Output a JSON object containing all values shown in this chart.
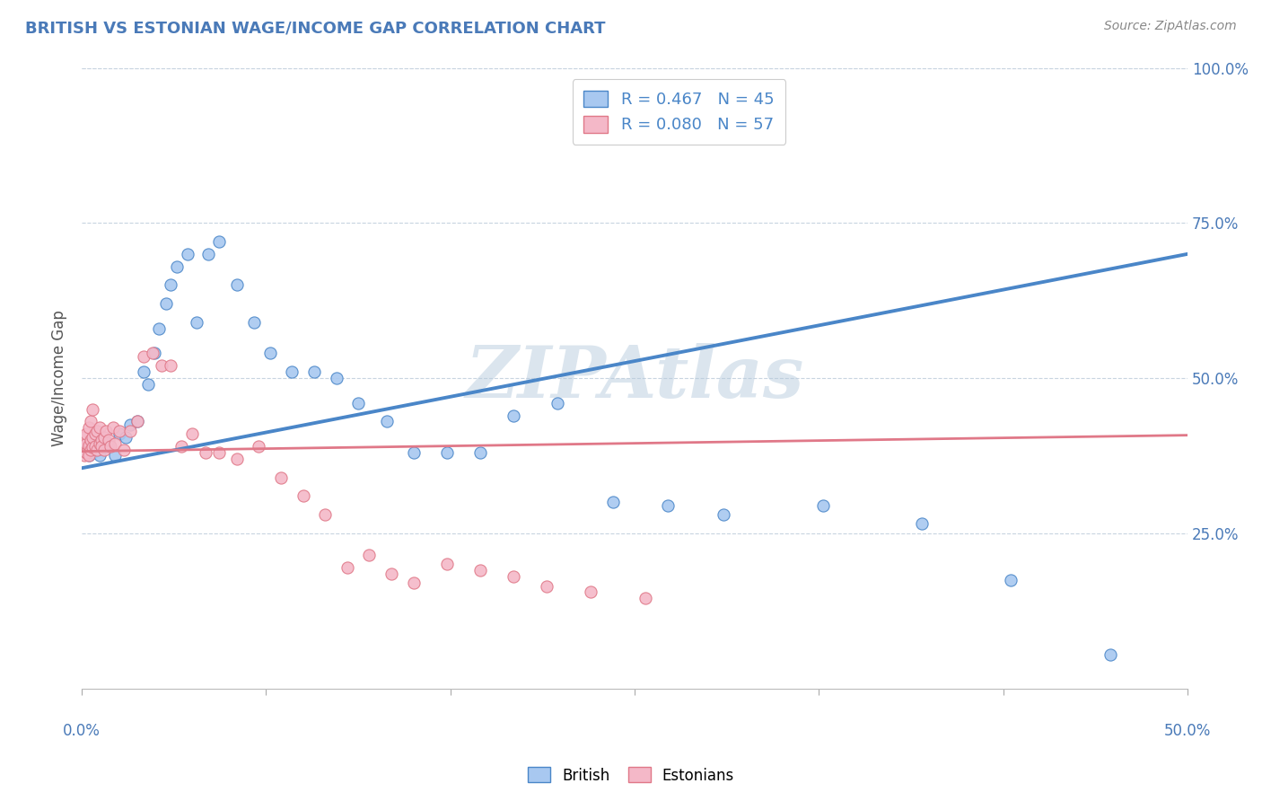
{
  "title": "BRITISH VS ESTONIAN WAGE/INCOME GAP CORRELATION CHART",
  "source": "Source: ZipAtlas.com",
  "ylabel": "Wage/Income Gap",
  "watermark": "ZIPAtlas",
  "legend_blue_r": "R = 0.467",
  "legend_blue_n": "N = 45",
  "legend_pink_r": "R = 0.080",
  "legend_pink_n": "N = 57",
  "blue_color": "#a8c8f0",
  "pink_color": "#f4b8c8",
  "trendline_blue": "#4a86c8",
  "trendline_pink": "#e07888",
  "title_color": "#4a7ab8",
  "source_color": "#888888",
  "tick_color": "#4a7ab8",
  "grid_color": "#c8d4e0",
  "xlim": [
    0.0,
    0.5
  ],
  "ylim": [
    0.0,
    1.0
  ],
  "ytick_vals": [
    0.25,
    0.5,
    0.75,
    1.0
  ],
  "ytick_labels": [
    "25.0%",
    "50.0%",
    "75.0%",
    "100.0%"
  ],
  "xtick_vals": [
    0.0,
    0.0833,
    0.1667,
    0.25,
    0.3333,
    0.4167,
    0.5
  ],
  "blue_points_x": [
    0.002,
    0.003,
    0.004,
    0.005,
    0.006,
    0.007,
    0.008,
    0.01,
    0.012,
    0.015,
    0.017,
    0.02,
    0.022,
    0.025,
    0.028,
    0.03,
    0.033,
    0.035,
    0.038,
    0.04,
    0.043,
    0.048,
    0.052,
    0.057,
    0.062,
    0.07,
    0.078,
    0.085,
    0.095,
    0.105,
    0.115,
    0.125,
    0.138,
    0.15,
    0.165,
    0.18,
    0.195,
    0.215,
    0.24,
    0.265,
    0.29,
    0.335,
    0.38,
    0.42,
    0.465
  ],
  "blue_points_y": [
    0.385,
    0.375,
    0.392,
    0.38,
    0.39,
    0.385,
    0.375,
    0.388,
    0.395,
    0.375,
    0.41,
    0.405,
    0.425,
    0.43,
    0.51,
    0.49,
    0.54,
    0.58,
    0.62,
    0.65,
    0.68,
    0.7,
    0.59,
    0.7,
    0.72,
    0.65,
    0.59,
    0.54,
    0.51,
    0.51,
    0.5,
    0.46,
    0.43,
    0.38,
    0.38,
    0.38,
    0.44,
    0.46,
    0.3,
    0.295,
    0.28,
    0.295,
    0.265,
    0.175,
    0.055
  ],
  "pink_points_x": [
    0.001,
    0.001,
    0.001,
    0.002,
    0.002,
    0.002,
    0.003,
    0.003,
    0.003,
    0.004,
    0.004,
    0.004,
    0.005,
    0.005,
    0.005,
    0.006,
    0.006,
    0.007,
    0.007,
    0.008,
    0.008,
    0.009,
    0.009,
    0.01,
    0.01,
    0.011,
    0.012,
    0.013,
    0.014,
    0.015,
    0.017,
    0.019,
    0.022,
    0.025,
    0.028,
    0.032,
    0.036,
    0.04,
    0.045,
    0.05,
    0.056,
    0.062,
    0.07,
    0.08,
    0.09,
    0.1,
    0.11,
    0.12,
    0.13,
    0.14,
    0.15,
    0.165,
    0.18,
    0.195,
    0.21,
    0.23,
    0.255
  ],
  "pink_points_y": [
    0.375,
    0.39,
    0.405,
    0.38,
    0.395,
    0.41,
    0.375,
    0.392,
    0.42,
    0.385,
    0.4,
    0.43,
    0.388,
    0.405,
    0.45,
    0.39,
    0.41,
    0.385,
    0.415,
    0.395,
    0.42,
    0.4,
    0.39,
    0.405,
    0.385,
    0.415,
    0.4,
    0.39,
    0.42,
    0.395,
    0.415,
    0.385,
    0.415,
    0.43,
    0.535,
    0.54,
    0.52,
    0.52,
    0.39,
    0.41,
    0.38,
    0.38,
    0.37,
    0.39,
    0.34,
    0.31,
    0.28,
    0.195,
    0.215,
    0.185,
    0.17,
    0.2,
    0.19,
    0.18,
    0.165,
    0.155,
    0.145
  ]
}
